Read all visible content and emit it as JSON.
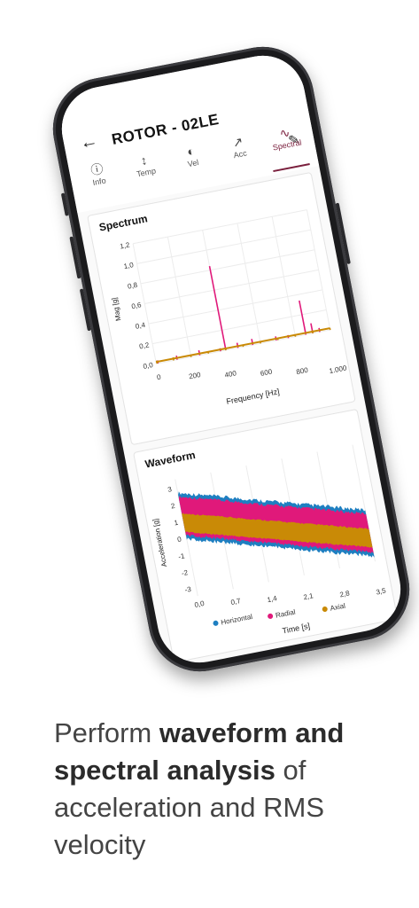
{
  "app": {
    "title": "ROTOR - 02LE",
    "back_icon": "arrow-left-icon",
    "edit_icon": "pencil-icon"
  },
  "tabs": [
    {
      "label": "Info",
      "icon": "info-icon",
      "active": false
    },
    {
      "label": "Temp",
      "icon": "thermometer-icon",
      "active": false
    },
    {
      "label": "Vel",
      "icon": "gauge-icon",
      "active": false
    },
    {
      "label": "Acc",
      "icon": "trend-icon",
      "active": false
    },
    {
      "label": "Spectral",
      "icon": "pulse-icon",
      "active": true
    }
  ],
  "colors": {
    "accent": "#7a1f3d",
    "horizontal": "#1e7fc1",
    "radial": "#e0197a",
    "axial": "#c98a06"
  },
  "spectrum": {
    "title": "Spectrum",
    "chart_data": {
      "type": "bar",
      "ylabel": "Mag [g]",
      "xlabel": "Frequency [Hz]",
      "yticks": [
        "1,2",
        "1,0",
        "0,8",
        "0,6",
        "0,4",
        "0,2",
        "0,0"
      ],
      "xticks": [
        "0",
        "200",
        "400",
        "600",
        "800",
        "1.000"
      ],
      "ylim": [
        0,
        1.2
      ],
      "xlim": [
        0,
        1000
      ],
      "series": [
        {
          "name": "Radial",
          "x": [
            10,
            120,
            250,
            370,
            400,
            470,
            555,
            690,
            760,
            860,
            900,
            940
          ],
          "values": [
            0.03,
            0.04,
            0.05,
            0.03,
            0.84,
            0.05,
            0.06,
            0.04,
            0.03,
            0.34,
            0.1,
            0.04
          ]
        },
        {
          "name": "Axial",
          "x": [
            5,
            100,
            200,
            300,
            400,
            500,
            600,
            700,
            800,
            900,
            1000
          ],
          "values": [
            0.03,
            0.03,
            0.02,
            0.02,
            0.02,
            0.02,
            0.02,
            0.02,
            0.02,
            0.03,
            0.02
          ]
        }
      ]
    }
  },
  "waveform": {
    "title": "Waveform",
    "chart_data": {
      "type": "line",
      "ylabel": "Acceleration [g]",
      "xlabel": "Time [s]",
      "yticks": [
        "3",
        "2",
        "1",
        "0",
        "-1",
        "-2",
        "-3"
      ],
      "xticks": [
        "0,0",
        "0,7",
        "1,4",
        "2,1",
        "2,8",
        "3,5"
      ],
      "ylim": [
        -3.5,
        3.5
      ],
      "xlim": [
        0,
        3.5
      ],
      "series": [
        {
          "name": "Horizontal",
          "x": [
            0,
            3.5
          ],
          "center": [
            1.3,
            -1.8
          ],
          "amplitude": 1.5
        },
        {
          "name": "Radial",
          "x": [
            0,
            3.5
          ],
          "center": [
            1.3,
            -1.8
          ],
          "amplitude": 1.25
        },
        {
          "name": "Axial",
          "x": [
            0,
            3.5
          ],
          "center": [
            0.9,
            -2.1
          ],
          "amplitude": 0.6
        }
      ],
      "legend": [
        "Horizontal",
        "Radial",
        "Axial"
      ]
    }
  },
  "caption": {
    "part1": "Perform ",
    "bold1": "waveform and spectral analysis",
    "part2": " of acceleration and RMS velocity"
  }
}
